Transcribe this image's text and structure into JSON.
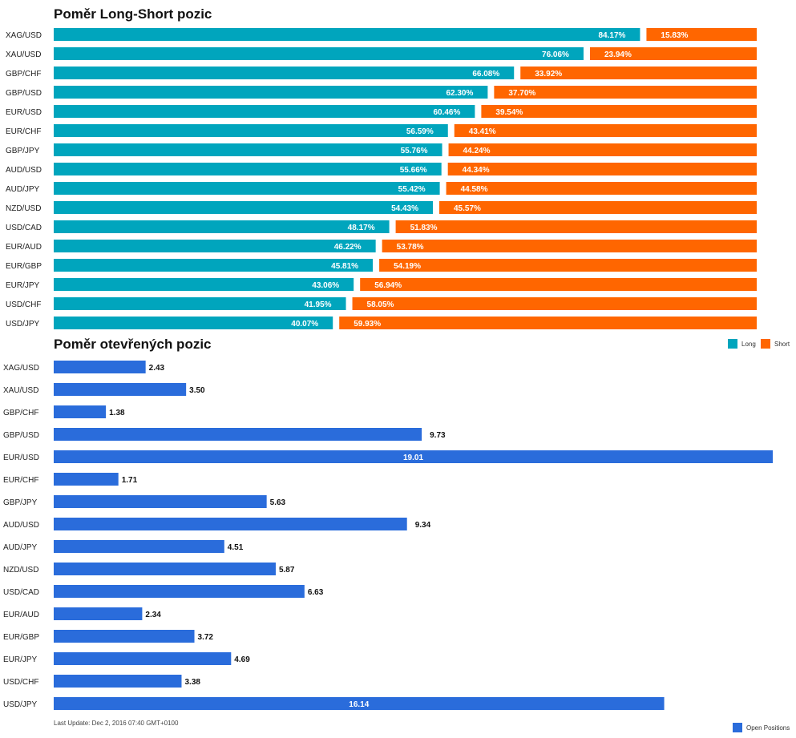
{
  "colors": {
    "long": "#00A5BD",
    "short": "#FF6600",
    "open": "#2A6CDB"
  },
  "chart_data": [
    {
      "type": "bar",
      "orientation": "horizontal",
      "stacked": true,
      "title": "Poměr Long-Short pozic",
      "categories": [
        "XAG/USD",
        "XAU/USD",
        "GBP/CHF",
        "GBP/USD",
        "EUR/USD",
        "EUR/CHF",
        "GBP/JPY",
        "AUD/USD",
        "AUD/JPY",
        "NZD/USD",
        "USD/CAD",
        "EUR/AUD",
        "EUR/GBP",
        "EUR/JPY",
        "USD/CHF",
        "USD/JPY"
      ],
      "series": [
        {
          "name": "Long",
          "values": [
            84.17,
            76.06,
            66.08,
            62.3,
            60.46,
            56.59,
            55.76,
            55.66,
            55.42,
            54.43,
            48.17,
            46.22,
            45.81,
            43.06,
            41.95,
            40.07
          ],
          "labels": [
            "84.17%",
            "76.06%",
            "66.08%",
            "62.30%",
            "60.46%",
            "56.59%",
            "55.76%",
            "55.66%",
            "55.42%",
            "54.43%",
            "48.17%",
            "46.22%",
            "45.81%",
            "43.06%",
            "41.95%",
            "40.07%"
          ]
        },
        {
          "name": "Short",
          "values": [
            15.83,
            23.94,
            33.92,
            37.7,
            39.54,
            43.41,
            44.24,
            44.34,
            44.58,
            45.57,
            51.83,
            53.78,
            54.19,
            56.94,
            58.05,
            59.93
          ],
          "labels": [
            "15.83%",
            "23.94%",
            "33.92%",
            "37.70%",
            "39.54%",
            "43.41%",
            "44.24%",
            "44.34%",
            "44.58%",
            "45.57%",
            "51.83%",
            "53.78%",
            "54.19%",
            "56.94%",
            "58.05%",
            "59.93%"
          ]
        }
      ],
      "xlim": [
        0,
        100
      ],
      "legend": "bottom-right"
    },
    {
      "type": "bar",
      "orientation": "horizontal",
      "title": "Poměr otevřených pozic",
      "categories": [
        "XAG/USD",
        "XAU/USD",
        "GBP/CHF",
        "GBP/USD",
        "EUR/USD",
        "EUR/CHF",
        "GBP/JPY",
        "AUD/USD",
        "AUD/JPY",
        "NZD/USD",
        "USD/CAD",
        "EUR/AUD",
        "EUR/GBP",
        "EUR/JPY",
        "USD/CHF",
        "USD/JPY"
      ],
      "series": [
        {
          "name": "Open Positions",
          "values": [
            2.43,
            3.5,
            1.38,
            9.73,
            19.01,
            1.71,
            5.63,
            9.34,
            4.51,
            5.87,
            6.63,
            2.34,
            3.72,
            4.69,
            3.38,
            16.14
          ],
          "labels": [
            "2.43",
            "3.50",
            "1.38",
            "9.73",
            "19.01",
            "1.71",
            "5.63",
            "9.34",
            "4.51",
            "5.87",
            "6.63",
            "2.34",
            "3.72",
            "4.69",
            "3.38",
            "16.14"
          ]
        }
      ],
      "xlim": [
        0,
        19.01
      ],
      "legend": "bottom-right"
    }
  ],
  "footer": {
    "last_update": "Last Update: Dec 2, 2016 07:40 GMT+0100"
  }
}
